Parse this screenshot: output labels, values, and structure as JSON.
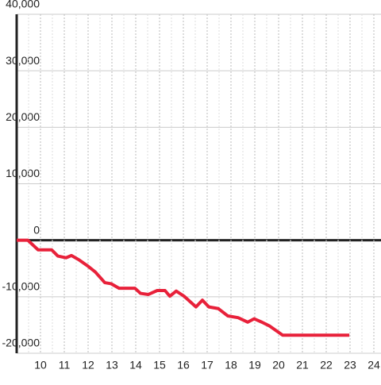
{
  "chart_data": {
    "type": "line",
    "x": [
      9.0,
      9.47,
      9.9,
      10.47,
      10.73,
      11.07,
      11.3,
      11.63,
      12.0,
      12.3,
      12.7,
      12.97,
      13.3,
      13.97,
      14.2,
      14.53,
      14.9,
      15.23,
      15.43,
      15.7,
      16.03,
      16.53,
      16.8,
      17.07,
      17.47,
      17.87,
      18.3,
      18.7,
      18.97,
      19.3,
      19.63,
      20.17,
      22.97
    ],
    "series": [
      {
        "color": "#e8213a",
        "values": [
          0,
          0,
          -1700,
          -1700,
          -2800,
          -3100,
          -2700,
          -3500,
          -4600,
          -5600,
          -7500,
          -7700,
          -8500,
          -8500,
          -9400,
          -9600,
          -8900,
          -8900,
          -9900,
          -9000,
          -9900,
          -11800,
          -10600,
          -11800,
          -12100,
          -13400,
          -13700,
          -14500,
          -13900,
          -14500,
          -15200,
          -16800,
          -16800
        ]
      }
    ],
    "xlim": [
      9,
      24.3
    ],
    "xticks": [
      10,
      11,
      12,
      13,
      14,
      15,
      16,
      17,
      18,
      19,
      20,
      21,
      22,
      23,
      24
    ],
    "ylim": [
      -20000,
      40000
    ],
    "yticks": [
      {
        "value": -20000,
        "label": "-20,000"
      },
      {
        "value": -10000,
        "label": "-10,000"
      },
      0,
      {
        "value": 10000,
        "label": "10,000"
      },
      {
        "value": 20000,
        "label": "20,000"
      },
      {
        "value": 30000,
        "label": "30,000"
      },
      {
        "value": 40000,
        "label": "40,000"
      }
    ],
    "grid": true
  }
}
